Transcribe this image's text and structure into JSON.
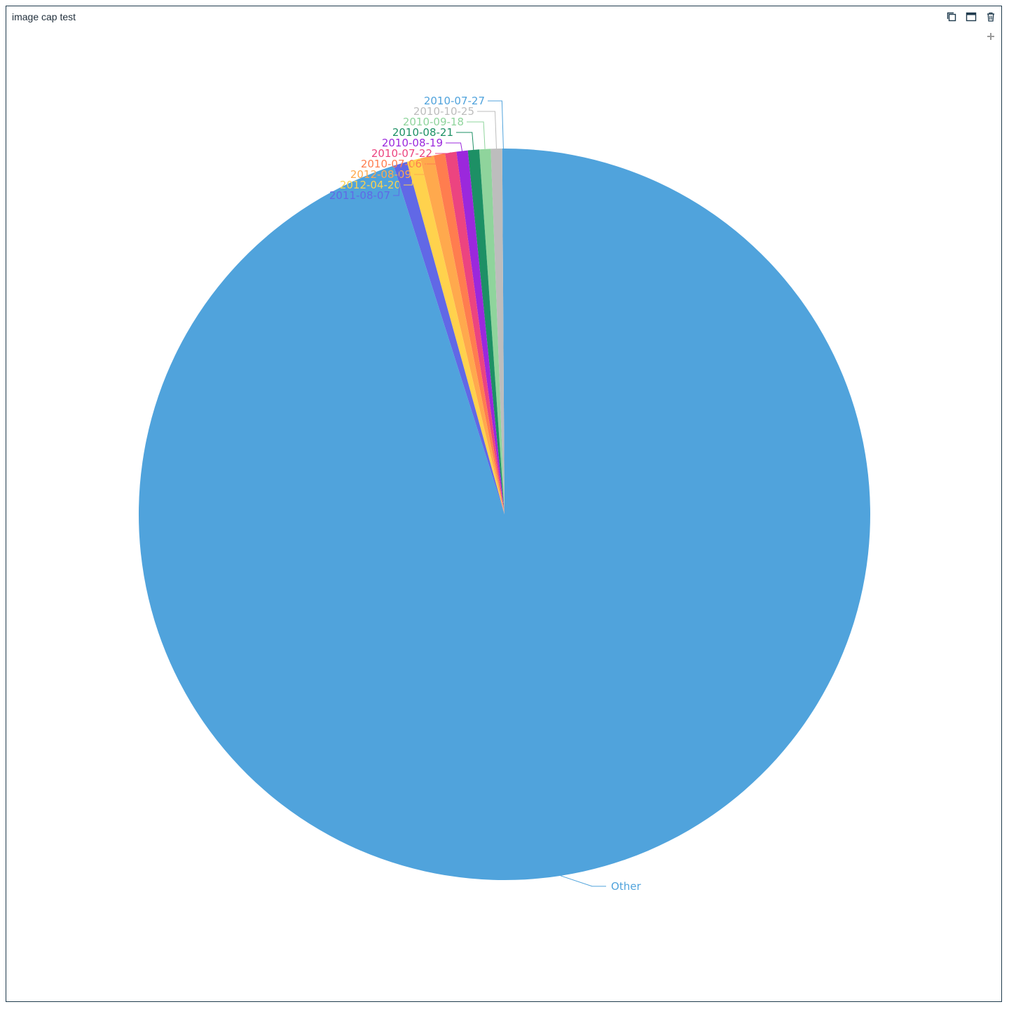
{
  "panel": {
    "title": "image cap test",
    "icons": {
      "copy": "copy-icon",
      "maximize": "maximize-icon",
      "delete": "trash-icon",
      "add": "plus-icon"
    }
  },
  "chart_data": {
    "type": "pie",
    "title": "",
    "categories": [
      "2010-07-27",
      "2010-10-25",
      "2010-09-18",
      "2010-08-21",
      "2010-08-19",
      "2010-07-22",
      "2010-07-06",
      "2012-08-09",
      "2012-04-20",
      "2011-08-07",
      "Other"
    ],
    "values": [
      0.1,
      0.5,
      0.5,
      0.5,
      0.5,
      0.5,
      0.5,
      0.6,
      0.6,
      0.6,
      95.1
    ],
    "colors": [
      "#50a3dc",
      "#bdbdbd",
      "#8fd49c",
      "#1d9065",
      "#9b28dc",
      "#ec4480",
      "#ff7d4f",
      "#ffa94d",
      "#ffd24d",
      "#6168e6",
      "#50a3dc"
    ],
    "start_angle_deg": 90,
    "direction": "counterclockwise",
    "legend": "none"
  }
}
